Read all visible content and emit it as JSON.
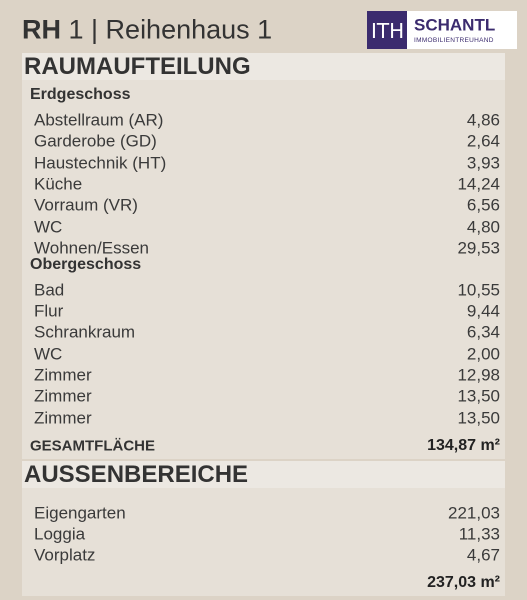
{
  "header": {
    "title_bold": "RH",
    "title": "1 | Reihenhaus 1",
    "logo": {
      "mark": "ITH",
      "name": "SCHANTL",
      "tagline": "IMMOBILIENTREUHAND"
    }
  },
  "sections": [
    {
      "title": "RAUMAUFTEILUNG",
      "groups": [
        {
          "title": "Erdgeschoss",
          "rows": [
            [
              "Abstellraum (AR)",
              "4,86"
            ],
            [
              "Garderobe (GD)",
              "2,64"
            ],
            [
              "Haustechnik (HT)",
              "3,93"
            ],
            [
              "Küche",
              "14,24"
            ],
            [
              "Vorraum (VR)",
              "6,56"
            ],
            [
              "WC",
              "4,80"
            ],
            [
              "Wohnen/Essen",
              "29,53"
            ]
          ]
        },
        {
          "title": "Obergeschoss",
          "rows": [
            [
              "Bad",
              "10,55"
            ],
            [
              "Flur",
              "9,44"
            ],
            [
              "Schrankraum",
              "6,34"
            ],
            [
              "WC",
              "2,00"
            ],
            [
              "Zimmer",
              "12,98"
            ],
            [
              "Zimmer",
              "13,50"
            ],
            [
              "Zimmer",
              "13,50"
            ]
          ]
        }
      ],
      "total": {
        "label": "GESAMTFLÄCHE",
        "value": "134,87 m²"
      }
    },
    {
      "title": "AUSSENBEREICHE",
      "groups": [
        {
          "rows": [
            [
              "Eigengarten",
              "221,03"
            ],
            [
              "Loggia",
              "11,33"
            ],
            [
              "Vorplatz",
              "4,67"
            ]
          ]
        }
      ],
      "total": {
        "value": "237,03 m²"
      }
    }
  ]
}
